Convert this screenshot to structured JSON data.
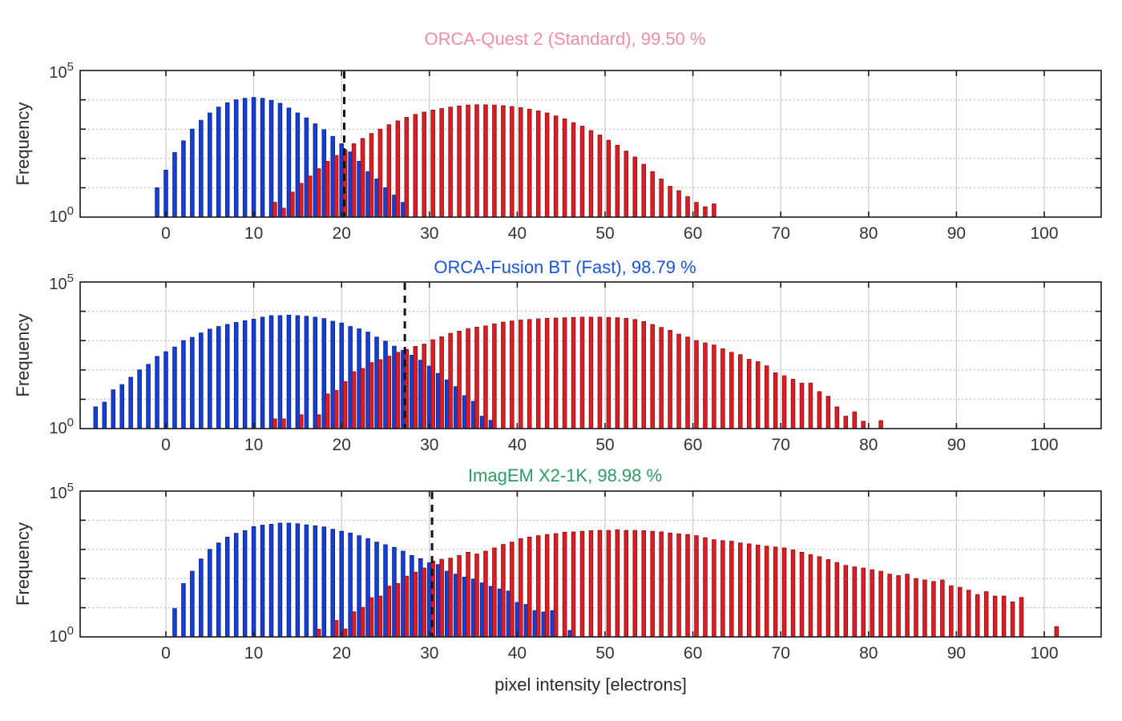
{
  "figure": {
    "xlabel": "pixel intensity [electrons]",
    "ylabel": "Frequency",
    "background": "#ffffff",
    "x_ticks": [
      0,
      10,
      20,
      30,
      40,
      50,
      60,
      70,
      80,
      90,
      100
    ],
    "y_axis": {
      "scale": "log10",
      "base": "10",
      "top_exponent": "5",
      "bottom_exponent": "0",
      "min_exp": 0,
      "max_exp": 5
    },
    "grid": {
      "vertical": "solid",
      "horizontal": "dotted"
    },
    "frame_color": "#1a1a1a",
    "grid_v_color": "#cccccc",
    "grid_h_color": "#b5b5b5",
    "tick_label_color": "#333333",
    "threshold_line_color": "#111111"
  },
  "chart_data": [
    {
      "type": "bar",
      "title": "ORCA-Quest 2 (Standard), 99.50 %",
      "title_color": "#f48ca3",
      "threshold_x": 20.3,
      "x_axis": {
        "min": -9.76,
        "max": 106.5
      },
      "y_axis": {
        "scale": "log10",
        "min_exp": 0,
        "max_exp": 5
      },
      "series": [
        {
          "name": "blue",
          "color": "#1540d8",
          "edge": "#0a1f8f",
          "x_start": -1,
          "x_step": 1,
          "log10_counts": [
            1.0,
            1.6,
            2.2,
            2.6,
            3.0,
            3.3,
            3.55,
            3.75,
            3.9,
            4.0,
            4.05,
            4.08,
            4.05,
            3.98,
            3.88,
            3.72,
            3.55,
            3.38,
            3.18,
            2.98,
            2.75,
            2.5,
            2.22,
            1.9,
            1.55,
            1.3,
            1.0,
            0.75,
            0.5
          ]
        },
        {
          "name": "red",
          "color": "#e01d24",
          "edge": "#8f0f14",
          "x_start": 12.4,
          "x_step": 1,
          "log10_counts": [
            0.5,
            0.3,
            0.85,
            1.15,
            1.4,
            1.65,
            1.9,
            2.1,
            2.3,
            2.5,
            2.68,
            2.85,
            3.0,
            3.15,
            3.28,
            3.4,
            3.5,
            3.58,
            3.65,
            3.7,
            3.75,
            3.79,
            3.82,
            3.83,
            3.83,
            3.82,
            3.8,
            3.77,
            3.73,
            3.68,
            3.62,
            3.55,
            3.45,
            3.35,
            3.22,
            3.1,
            2.95,
            2.8,
            2.62,
            2.45,
            2.25,
            2.05,
            1.8,
            1.55,
            1.3,
            1.05,
            0.9,
            0.7,
            0.5,
            0.35,
            0.45
          ]
        }
      ]
    },
    {
      "type": "bar",
      "title": "ORCA-Fusion BT (Fast), 98.79 %",
      "title_color": "#1a53e0",
      "threshold_x": 27.2,
      "x_axis": {
        "min": -9.76,
        "max": 106.5
      },
      "y_axis": {
        "scale": "log10",
        "min_exp": 0,
        "max_exp": 5
      },
      "series": [
        {
          "name": "blue",
          "color": "#1540d8",
          "edge": "#0a1f8f",
          "x_start": -8,
          "x_step": 1,
          "log10_counts": [
            0.74,
            0.9,
            1.32,
            1.5,
            1.75,
            2.0,
            2.19,
            2.46,
            2.62,
            2.78,
            3.0,
            3.11,
            3.26,
            3.39,
            3.48,
            3.55,
            3.62,
            3.68,
            3.73,
            3.8,
            3.85,
            3.85,
            3.87,
            3.85,
            3.83,
            3.8,
            3.75,
            3.66,
            3.6,
            3.48,
            3.4,
            3.29,
            3.12,
            2.98,
            2.81,
            2.67,
            2.5,
            2.33,
            2.13,
            1.88,
            1.66,
            1.43,
            1.12,
            0.93,
            0.42,
            0.28
          ]
        },
        {
          "name": "red",
          "color": "#e01d24",
          "edge": "#8f0f14",
          "x_start": 12.4,
          "x_step": 1,
          "log10_counts": [
            0.33,
            0.33,
            null,
            0.47,
            null,
            0.47,
            1.18,
            1.3,
            1.6,
            1.94,
            2.05,
            2.25,
            2.35,
            2.47,
            2.6,
            2.7,
            2.8,
            2.88,
            3.03,
            3.13,
            3.25,
            3.32,
            3.41,
            3.46,
            3.5,
            3.57,
            3.63,
            3.67,
            3.7,
            3.72,
            3.74,
            3.76,
            3.77,
            3.78,
            3.79,
            3.8,
            3.8,
            3.8,
            3.79,
            3.78,
            3.76,
            3.72,
            3.65,
            3.55,
            3.45,
            3.35,
            3.22,
            3.12,
            3.0,
            2.92,
            2.85,
            2.72,
            2.6,
            2.52,
            2.36,
            2.28,
            2.14,
            1.9,
            1.8,
            1.68,
            1.55,
            1.55,
            1.26,
            1.1,
            0.74,
            0.42,
            0.57,
            0.25,
            null,
            0.27
          ]
        }
      ]
    },
    {
      "type": "bar",
      "title": "ImagEM X2-1K, 98.98 %",
      "title_color": "#2d9b63",
      "threshold_x": 30.3,
      "x_axis": {
        "min": -9.76,
        "max": 106.5
      },
      "y_axis": {
        "scale": "log10",
        "min_exp": 0,
        "max_exp": 5
      },
      "series": [
        {
          "name": "blue",
          "color": "#1540d8",
          "edge": "#0a1f8f",
          "x_start": 1,
          "x_step": 1,
          "log10_counts": [
            0.97,
            1.83,
            2.25,
            2.67,
            3.0,
            3.22,
            3.42,
            3.55,
            3.64,
            3.78,
            3.83,
            3.86,
            3.9,
            3.9,
            3.88,
            3.84,
            3.81,
            3.77,
            3.69,
            3.62,
            3.56,
            3.47,
            3.37,
            3.25,
            3.16,
            3.07,
            2.94,
            2.79,
            2.68,
            2.54,
            2.48,
            2.25,
            2.15,
            2.05,
            1.98,
            1.85,
            1.73,
            1.64,
            1.57,
            1.18,
            1.11,
            0.9,
            0.85,
            0.9,
            null,
            0.22
          ]
        },
        {
          "name": "red",
          "color": "#e01d24",
          "edge": "#8f0f14",
          "x_start": 17.4,
          "x_step": 1,
          "log10_counts": [
            0.26,
            null,
            0.56,
            0.27,
            0.86,
            1.01,
            1.34,
            1.4,
            1.74,
            1.83,
            2.08,
            2.22,
            2.36,
            2.6,
            2.66,
            2.7,
            2.79,
            2.9,
            2.84,
            2.94,
            3.05,
            3.17,
            3.25,
            3.37,
            3.42,
            3.47,
            3.51,
            3.54,
            3.59,
            3.6,
            3.62,
            3.64,
            3.65,
            3.65,
            3.67,
            3.65,
            3.65,
            3.64,
            3.62,
            3.6,
            3.56,
            3.53,
            3.51,
            3.47,
            3.4,
            3.33,
            3.3,
            3.28,
            3.22,
            3.19,
            3.15,
            3.11,
            3.08,
            3.05,
            2.98,
            2.9,
            2.82,
            2.75,
            2.65,
            2.55,
            2.45,
            2.4,
            2.36,
            2.3,
            2.25,
            2.15,
            2.1,
            2.15,
            2.0,
            1.95,
            1.9,
            1.95,
            1.75,
            1.7,
            1.6,
            1.45,
            1.55,
            1.4,
            1.4,
            1.2,
            1.35,
            null,
            null,
            null,
            0.35
          ]
        }
      ]
    }
  ]
}
